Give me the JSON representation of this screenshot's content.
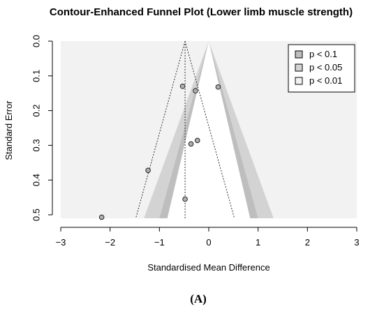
{
  "chart_data": {
    "type": "scatter",
    "title": "Contour-Enhanced Funnel Plot (Lower limb muscle strength)",
    "xlabel": "Standardised Mean Difference",
    "ylabel": "Standard Error",
    "xlim": [
      -3,
      3
    ],
    "ylim": [
      0.51,
      0
    ],
    "xticks": [
      -3,
      -2,
      -1,
      0,
      1,
      2,
      3
    ],
    "yticks": [
      0.0,
      0.1,
      0.2,
      0.3,
      0.4,
      0.5
    ],
    "ytick_labels": [
      "0.0",
      "0.1",
      "0.2",
      "0.3",
      "0.4",
      "0.5"
    ],
    "points": [
      {
        "x": -0.53,
        "y": 0.13
      },
      {
        "x": -0.27,
        "y": 0.143
      },
      {
        "x": 0.19,
        "y": 0.132
      },
      {
        "x": -0.23,
        "y": 0.286
      },
      {
        "x": -0.36,
        "y": 0.296
      },
      {
        "x": -1.23,
        "y": 0.372
      },
      {
        "x": -0.48,
        "y": 0.455
      },
      {
        "x": -2.17,
        "y": 0.507
      }
    ],
    "pooled_estimate": -0.48,
    "contours": [
      {
        "label": "p < 0.1",
        "z": 1.645,
        "color": "#bebebe"
      },
      {
        "label": "p < 0.05",
        "z": 1.96,
        "color": "#d3d3d3"
      },
      {
        "label": "p < 0.01",
        "z": 2.576,
        "color": "#f2f2f2"
      }
    ],
    "legend_position": "top-right",
    "background_color": "#f2f2f2",
    "inner_color": "#ffffff",
    "point_color": "#b0b0b0",
    "grid": false
  },
  "caption": "(A)"
}
